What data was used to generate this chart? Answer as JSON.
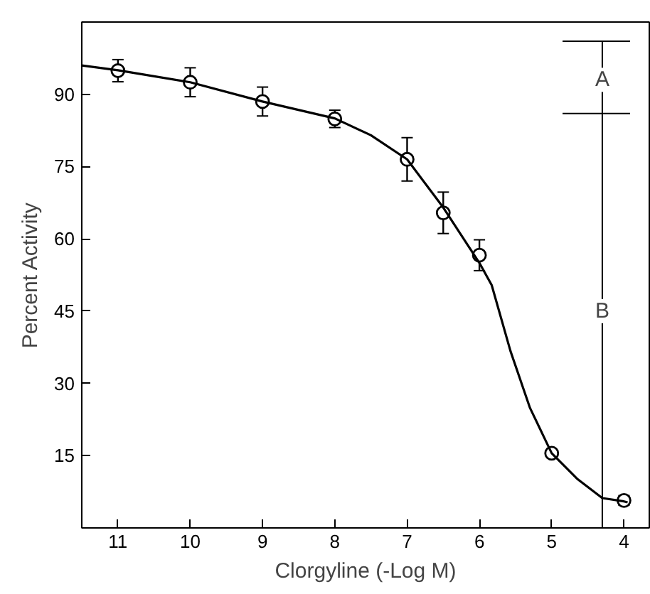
{
  "chart_data": {
    "type": "scatter",
    "xlabel": "Clorgyline (-Log M)",
    "ylabel": "Percent Activity",
    "xlim": [
      11.5,
      3.65
    ],
    "ylim": [
      0,
      105
    ],
    "xticks": [
      11,
      10,
      9,
      8,
      7,
      6,
      5,
      4
    ],
    "yticks": [
      15,
      30,
      45,
      60,
      75,
      90
    ],
    "grid": false,
    "marker": "circle",
    "series": [
      {
        "color": "#000000",
        "x": [
          11,
          10,
          9,
          8,
          7,
          6.5,
          6,
          5,
          4
        ],
        "values": [
          94.9,
          92.5,
          88.5,
          84.9,
          76.5,
          65.4,
          56.6,
          15.5,
          5.7
        ],
        "errors": [
          2.3,
          3,
          3,
          1.8,
          4.5,
          4.3,
          3.2,
          null,
          1
        ]
      },
      {
        "type": "line",
        "color": "#000000",
        "marker": "none",
        "line_style": "solid",
        "x": [
          11.5,
          11,
          10,
          9,
          8,
          7.5,
          7,
          6.5,
          6,
          5.83,
          5.57,
          5.3,
          5,
          4.64,
          4.3,
          4,
          3.95
        ],
        "values": [
          96,
          95,
          92.5,
          88.5,
          85,
          81.5,
          76.5,
          66.5,
          55,
          50.4,
          36.7,
          24.9,
          15.5,
          10.1,
          6.2,
          5.5,
          5.3
        ]
      }
    ],
    "ref_lines": [
      {
        "axis": "x",
        "value": 4.3,
        "color": "#000000"
      },
      {
        "axis": "y",
        "value": 101,
        "color": "#000000"
      },
      {
        "axis": "y",
        "value": 86,
        "color": "#000000"
      }
    ],
    "annotations": [
      {
        "text": "A",
        "x": 4.3,
        "y": 93
      },
      {
        "text": "B",
        "x": 4.3,
        "y": 45
      }
    ]
  }
}
